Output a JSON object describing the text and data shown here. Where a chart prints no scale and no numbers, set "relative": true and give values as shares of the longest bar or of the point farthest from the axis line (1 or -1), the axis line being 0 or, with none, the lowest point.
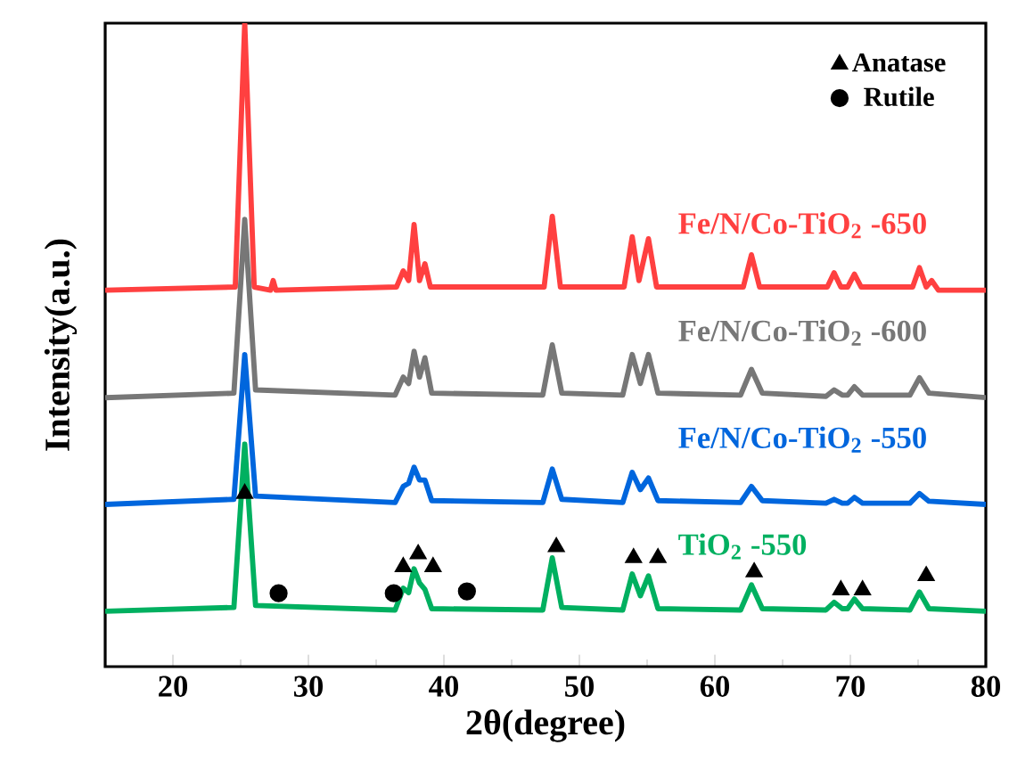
{
  "chart_data": {
    "type": "line",
    "relative": true,
    "xlabel": "2θ(degree)",
    "ylabel": "Intensity(a.u.)",
    "xlim": [
      15,
      80
    ],
    "xticks": [
      20,
      30,
      40,
      50,
      60,
      70,
      80
    ],
    "legend": "top right",
    "marker": "none",
    "series": [
      {
        "name": "Fe/N/Co-TiO$_{2}$ -650",
        "color": "#ff4040",
        "x": [
          15,
          24.6,
          25.3,
          26.0,
          27.2,
          27.4,
          27.6,
          36.5,
          37.0,
          37.4,
          37.8,
          38.2,
          38.6,
          39.0,
          47.4,
          48.0,
          48.6,
          53.3,
          53.9,
          54.4,
          55.1,
          55.7,
          62.1,
          62.7,
          63.3,
          68.3,
          68.8,
          69.3,
          69.8,
          70.3,
          70.8,
          74.6,
          75.1,
          75.6,
          76.0,
          76.5,
          80
        ],
        "values": [
          0.585,
          0.59,
          1,
          0.59,
          0.585,
          0.6,
          0.585,
          0.59,
          0.615,
          0.6,
          0.687,
          0.6,
          0.626,
          0.59,
          0.59,
          0.7,
          0.59,
          0.59,
          0.668,
          0.6,
          0.665,
          0.59,
          0.59,
          0.64,
          0.59,
          0.59,
          0.612,
          0.59,
          0.59,
          0.61,
          0.59,
          0.59,
          0.62,
          0.59,
          0.6,
          0.585,
          0.585
        ]
      },
      {
        "name": "Fe/N/Co-TiO$_{2}$ -600",
        "color": "#777777",
        "x": [
          15,
          24.5,
          25.3,
          26.1,
          36.4,
          37.0,
          37.4,
          37.8,
          38.2,
          38.6,
          39.1,
          47.3,
          48.0,
          48.7,
          53.2,
          53.9,
          54.5,
          55.1,
          55.8,
          61.9,
          62.7,
          63.5,
          68.2,
          68.8,
          69.4,
          69.8,
          70.3,
          70.9,
          74.4,
          75.1,
          75.8,
          80
        ],
        "values": [
          0.418,
          0.425,
          0.695,
          0.43,
          0.422,
          0.45,
          0.44,
          0.49,
          0.45,
          0.48,
          0.425,
          0.422,
          0.5,
          0.425,
          0.422,
          0.485,
          0.44,
          0.485,
          0.425,
          0.422,
          0.462,
          0.425,
          0.42,
          0.43,
          0.422,
          0.422,
          0.435,
          0.422,
          0.422,
          0.449,
          0.425,
          0.418
        ]
      },
      {
        "name": "Fe/N/Co-TiO$_{2}$ -550",
        "color": "#0066dd",
        "x": [
          15,
          24.5,
          25.3,
          26.1,
          36.4,
          37.0,
          37.4,
          37.8,
          38.2,
          38.6,
          39.1,
          47.3,
          48.0,
          48.7,
          53.2,
          53.9,
          54.5,
          55.1,
          55.8,
          61.9,
          62.7,
          63.5,
          68.2,
          68.8,
          69.4,
          69.8,
          70.3,
          70.9,
          74.4,
          75.1,
          75.8,
          80
        ],
        "values": [
          0.252,
          0.26,
          0.485,
          0.265,
          0.255,
          0.28,
          0.285,
          0.31,
          0.29,
          0.29,
          0.258,
          0.255,
          0.307,
          0.26,
          0.255,
          0.302,
          0.275,
          0.293,
          0.258,
          0.255,
          0.28,
          0.258,
          0.254,
          0.26,
          0.254,
          0.254,
          0.263,
          0.254,
          0.254,
          0.269,
          0.257,
          0.252
        ]
      },
      {
        "name": "TiO$_{2}$ -550",
        "color": "#00b060",
        "x": [
          15,
          24.5,
          25.3,
          26.1,
          36.4,
          37.0,
          37.4,
          37.8,
          38.2,
          38.6,
          39.1,
          47.3,
          48.0,
          48.7,
          53.2,
          53.9,
          54.5,
          55.1,
          55.8,
          61.9,
          62.7,
          63.5,
          68.2,
          68.8,
          69.4,
          69.8,
          70.3,
          70.9,
          74.4,
          75.1,
          75.8,
          80
        ],
        "values": [
          0.086,
          0.092,
          0.346,
          0.095,
          0.088,
          0.122,
          0.115,
          0.152,
          0.13,
          0.12,
          0.09,
          0.088,
          0.169,
          0.092,
          0.088,
          0.144,
          0.11,
          0.141,
          0.09,
          0.088,
          0.127,
          0.09,
          0.088,
          0.1,
          0.09,
          0.09,
          0.105,
          0.09,
          0.088,
          0.116,
          0.09,
          0.086
        ]
      },
      {
        "name": "Anatase",
        "type": "scatter",
        "marker": "triangle",
        "color": "#000000",
        "x": [
          25.3,
          37.0,
          38.1,
          39.2,
          48.3,
          54.0,
          55.8,
          62.9,
          69.3,
          70.9,
          75.6
        ],
        "values": [
          0.269,
          0.155,
          0.175,
          0.155,
          0.186,
          0.169,
          0.169,
          0.147,
          0.119,
          0.119,
          0.141
        ]
      },
      {
        "name": "Rutile",
        "type": "scatter",
        "marker": "circle",
        "color": "#000000",
        "x": [
          27.8,
          36.3,
          41.7
        ],
        "values": [
          0.114,
          0.114,
          0.117
        ]
      }
    ]
  }
}
